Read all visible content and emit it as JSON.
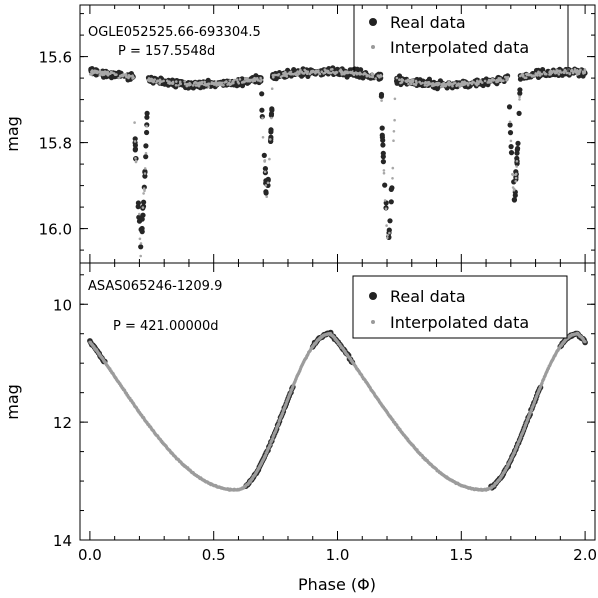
{
  "chart_data": [
    {
      "type": "scatter",
      "panel": "top",
      "ylabel": "mag",
      "ylim": [
        16.08,
        15.48
      ],
      "yticks": [
        15.6,
        15.8,
        16.0
      ],
      "ytick_labels": [
        "15.6",
        "15.8",
        "16.0"
      ],
      "xlim": [
        -0.04,
        2.04
      ],
      "star_label": "OGLE052525.66-693304.5",
      "period_label": "P = 157.5548d",
      "legend": [
        "Real data",
        "Interpolated data"
      ],
      "legend_placement": "top-right",
      "series": [
        {
          "name": "Real data",
          "style": "dark-circle",
          "curve": "eclipsing",
          "params": {
            "base": 15.65,
            "primary_phase": 0.205,
            "primary_depth": 0.39,
            "primary_width": 0.028,
            "secondary_phase": 0.715,
            "secondary_depth": 0.28,
            "secondary_width": 0.022,
            "scatter": 0.012
          },
          "x_range": [
            0.0,
            2.0
          ]
        },
        {
          "name": "Interpolated data",
          "style": "gray-dot",
          "curve": "eclipsing",
          "params": {
            "base": 15.65,
            "primary_phase": 0.205,
            "primary_depth": 0.39,
            "primary_width": 0.028,
            "secondary_phase": 0.715,
            "secondary_depth": 0.28,
            "secondary_width": 0.022,
            "scatter": 0.008
          },
          "x_range": [
            0.0,
            2.0
          ]
        }
      ]
    },
    {
      "type": "scatter",
      "panel": "bottom",
      "xlabel": "Phase (Φ)",
      "ylabel": "mag",
      "ylim": [
        14.0,
        9.3
      ],
      "yticks": [
        10,
        12,
        14
      ],
      "ytick_labels": [
        "10",
        "12",
        "14"
      ],
      "xlim": [
        -0.04,
        2.04
      ],
      "xticks": [
        0.0,
        0.5,
        1.0,
        1.5,
        2.0
      ],
      "xtick_labels": [
        "0.0",
        "0.5",
        "1.0",
        "1.5",
        "2.0"
      ],
      "star_label": "ASAS065246-1209.9",
      "period_label": "P = 421.00000d",
      "legend": [
        "Real data",
        "Interpolated data"
      ],
      "legend_placement": "top-right",
      "series": [
        {
          "name": "Real data",
          "style": "dark-circle",
          "curve": "pulsating",
          "params": {
            "max_phase": 0.97,
            "min_phase": 0.59,
            "bright_mag": 10.5,
            "faint_mag": 13.15
          },
          "x_segments": [
            [
              0.0,
              0.06
            ],
            [
              0.63,
              0.82
            ],
            [
              0.9,
              1.06
            ],
            [
              1.62,
              1.82
            ],
            [
              1.9,
              2.0
            ]
          ]
        },
        {
          "name": "Interpolated data",
          "style": "gray-dot",
          "curve": "pulsating",
          "params": {
            "max_phase": 0.97,
            "min_phase": 0.59,
            "bright_mag": 10.5,
            "faint_mag": 13.15
          },
          "x_segments": [
            [
              0.0,
              2.0
            ]
          ]
        }
      ]
    }
  ]
}
